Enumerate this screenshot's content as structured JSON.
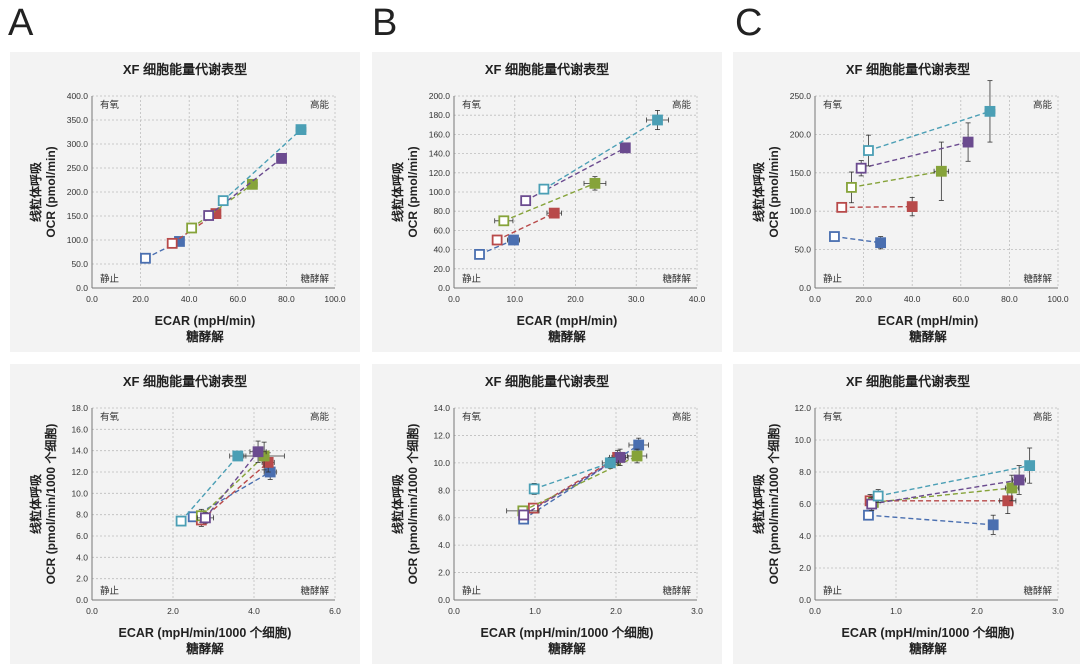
{
  "panels": [
    {
      "letter": "A"
    },
    {
      "letter": "B"
    },
    {
      "letter": "C"
    }
  ],
  "quadrants": {
    "top_left": "有氧",
    "top_right": "高能",
    "bottom_left": "静止",
    "bottom_right": "糖酵解"
  },
  "colors": {
    "gray": "#8c8c8c",
    "blue": "#4a6fb0",
    "red": "#b84a4a",
    "green": "#86a33a",
    "purple": "#6b4b8f",
    "teal": "#4b9fb5"
  },
  "chart_data": [
    {
      "id": "A-top",
      "type": "scatter",
      "title": "XF 细胞能量代谢表型",
      "ylabel": [
        "线粒体呼吸",
        "OCR (pmol/min)"
      ],
      "xlabel": [
        "ECAR (mpH/min)",
        "糖酵解"
      ],
      "xlim": [
        0,
        100
      ],
      "ylim": [
        0,
        400
      ],
      "xticks": [
        0,
        20,
        40,
        60,
        80,
        100
      ],
      "yticks": [
        0,
        50,
        100,
        150,
        200,
        250,
        300,
        350,
        400
      ],
      "xfmt": 1,
      "yfmt": 1,
      "series": [
        {
          "name": "blue",
          "color": "#4a6fb0",
          "points": [
            [
              22,
              62,
              0,
              0
            ],
            [
              36,
              97,
              0,
              0
            ]
          ]
        },
        {
          "name": "red",
          "color": "#b84a4a",
          "points": [
            [
              33,
              93,
              0,
              0
            ],
            [
              51,
              155,
              0,
              0
            ]
          ]
        },
        {
          "name": "green",
          "color": "#86a33a",
          "points": [
            [
              41,
              125,
              0,
              0
            ],
            [
              66,
              216,
              2,
              10
            ]
          ]
        },
        {
          "name": "purple",
          "color": "#6b4b8f",
          "points": [
            [
              48,
              151,
              0,
              0
            ],
            [
              78,
              270,
              1.5,
              10
            ]
          ]
        },
        {
          "name": "teal",
          "color": "#4b9fb5",
          "points": [
            [
              54,
              182,
              0,
              0
            ],
            [
              86,
              330,
              2,
              6
            ]
          ]
        }
      ]
    },
    {
      "id": "B-top",
      "type": "scatter",
      "title": "XF 细胞能量代谢表型",
      "ylabel": [
        "线粒体呼吸",
        "OCR (pmol/min)"
      ],
      "xlabel": [
        "ECAR (mpH/min)",
        "糖酵解"
      ],
      "xlim": [
        0,
        40
      ],
      "ylim": [
        0,
        200
      ],
      "xticks": [
        0,
        10,
        20,
        30,
        40
      ],
      "yticks": [
        0,
        20,
        40,
        60,
        80,
        100,
        120,
        140,
        160,
        180,
        200
      ],
      "xfmt": 1,
      "yfmt": 1,
      "series": [
        {
          "name": "blue",
          "color": "#4a6fb0",
          "points": [
            [
              4.2,
              35,
              0,
              0
            ],
            [
              9.8,
              50,
              1,
              3
            ]
          ]
        },
        {
          "name": "red",
          "color": "#b84a4a",
          "points": [
            [
              7.1,
              50,
              0,
              0
            ],
            [
              16.5,
              78,
              1.2,
              4
            ]
          ]
        },
        {
          "name": "green",
          "color": "#86a33a",
          "points": [
            [
              8.2,
              70,
              1.5,
              3
            ],
            [
              23.2,
              109,
              1.8,
              7
            ]
          ]
        },
        {
          "name": "purple",
          "color": "#6b4b8f",
          "points": [
            [
              11.8,
              91,
              0,
              0
            ],
            [
              28.2,
              146,
              0,
              4
            ]
          ]
        },
        {
          "name": "teal",
          "color": "#4b9fb5",
          "points": [
            [
              14.8,
              103,
              0,
              0
            ],
            [
              33.5,
              175,
              1.8,
              10
            ]
          ]
        }
      ]
    },
    {
      "id": "C-top",
      "type": "scatter",
      "title": "XF 细胞能量代谢表型",
      "ylabel": [
        "线粒体呼吸",
        "OCR (pmol/min)"
      ],
      "xlabel": [
        "ECAR (mpH/min)",
        "糖酵解"
      ],
      "xlim": [
        0,
        100
      ],
      "ylim": [
        0,
        250
      ],
      "xticks": [
        0,
        20,
        40,
        60,
        80,
        100
      ],
      "yticks": [
        0,
        50,
        100,
        150,
        200,
        250
      ],
      "xfmt": 1,
      "yfmt": 1,
      "series": [
        {
          "name": "blue",
          "color": "#4a6fb0",
          "points": [
            [
              8,
              67,
              0,
              0
            ],
            [
              27,
              59,
              2,
              8
            ]
          ]
        },
        {
          "name": "red",
          "color": "#b84a4a",
          "points": [
            [
              11,
              105,
              0,
              0
            ],
            [
              40,
              106,
              1,
              12
            ]
          ]
        },
        {
          "name": "green",
          "color": "#86a33a",
          "points": [
            [
              15,
              131,
              0,
              20
            ],
            [
              52,
              152,
              3,
              38
            ]
          ]
        },
        {
          "name": "purple",
          "color": "#6b4b8f",
          "points": [
            [
              19,
              156,
              0,
              10
            ],
            [
              63,
              190,
              2,
              25
            ]
          ]
        },
        {
          "name": "teal",
          "color": "#4b9fb5",
          "points": [
            [
              22,
              179,
              0,
              20
            ],
            [
              72,
              230,
              2,
              40
            ]
          ]
        }
      ]
    },
    {
      "id": "A-bottom",
      "type": "scatter",
      "title": "XF 细胞能量代谢表型",
      "ylabel": [
        "线粒体呼吸",
        "OCR (pmol/min/1000 个细胞)"
      ],
      "xlabel": [
        "ECAR (mpH/min/1000 个细胞)",
        "糖酵解"
      ],
      "xlim": [
        0,
        6
      ],
      "ylim": [
        0,
        18
      ],
      "xticks": [
        0,
        2,
        4,
        6
      ],
      "yticks": [
        0,
        2,
        4,
        6,
        8,
        10,
        12,
        14,
        16,
        18
      ],
      "xfmt": 1,
      "yfmt": 1,
      "series": [
        {
          "name": "blue",
          "color": "#4a6fb0",
          "points": [
            [
              2.5,
              7.8,
              0,
              0
            ],
            [
              4.4,
              12.0,
              0.15,
              0.7
            ]
          ]
        },
        {
          "name": "red",
          "color": "#b84a4a",
          "points": [
            [
              2.7,
              7.5,
              0.1,
              0.6
            ],
            [
              4.35,
              12.9,
              0.15,
              0.9
            ]
          ]
        },
        {
          "name": "green",
          "color": "#86a33a",
          "points": [
            [
              2.7,
              7.9,
              0.1,
              0.6
            ],
            [
              4.25,
              13.5,
              0.5,
              1.3
            ]
          ]
        },
        {
          "name": "purple",
          "color": "#6b4b8f",
          "points": [
            [
              2.8,
              7.7,
              0.2,
              0.5
            ],
            [
              4.1,
              13.9,
              0.2,
              1.0
            ]
          ]
        },
        {
          "name": "teal",
          "color": "#4b9fb5",
          "points": [
            [
              2.2,
              7.4,
              0,
              0
            ],
            [
              3.6,
              13.5,
              0.2,
              0.4
            ]
          ]
        }
      ]
    },
    {
      "id": "B-bottom",
      "type": "scatter",
      "title": "XF 细胞能量代谢表型",
      "ylabel": [
        "线粒体呼吸",
        "OCR (pmol/min/1000 个细胞)"
      ],
      "xlabel": [
        "ECAR (mpH/min/1000 个细胞)",
        "糖酵解"
      ],
      "xlim": [
        0,
        3
      ],
      "ylim": [
        0,
        14
      ],
      "xticks": [
        0,
        1,
        2,
        3
      ],
      "yticks": [
        0,
        2,
        4,
        6,
        8,
        10,
        12,
        14
      ],
      "xfmt": 1,
      "yfmt": 1,
      "series": [
        {
          "name": "blue",
          "color": "#4a6fb0",
          "points": [
            [
              0.86,
              5.9,
              0.05,
              0.3
            ],
            [
              2.28,
              11.3,
              0.12,
              0.5
            ]
          ]
        },
        {
          "name": "red",
          "color": "#b84a4a",
          "points": [
            [
              0.98,
              6.7,
              0.05,
              0.3
            ],
            [
              2.02,
              10.4,
              0.1,
              0.5
            ]
          ]
        },
        {
          "name": "green",
          "color": "#86a33a",
          "points": [
            [
              0.85,
              6.5,
              0.2,
              0.3
            ],
            [
              2.26,
              10.5,
              0.12,
              0.5
            ]
          ]
        },
        {
          "name": "purple",
          "color": "#6b4b8f",
          "points": [
            [
              0.86,
              6.2,
              0.05,
              0.3
            ],
            [
              2.05,
              10.4,
              0.1,
              0.6
            ]
          ]
        },
        {
          "name": "teal",
          "color": "#4b9fb5",
          "points": [
            [
              0.99,
              8.1,
              0.05,
              0.4
            ],
            [
              1.93,
              10.0,
              0.1,
              0.4
            ]
          ]
        }
      ]
    },
    {
      "id": "C-bottom",
      "type": "scatter",
      "title": "XF 细胞能量代谢表型",
      "ylabel": [
        "线粒体呼吸",
        "OCR (pmol/min/1000 个细胞)"
      ],
      "xlabel": [
        "ECAR (mpH/min/1000 个细胞)",
        "糖酵解"
      ],
      "xlim": [
        0,
        3
      ],
      "ylim": [
        0,
        12
      ],
      "xticks": [
        0,
        1,
        2,
        3
      ],
      "yticks": [
        0,
        2,
        4,
        6,
        8,
        10,
        12
      ],
      "xfmt": 1,
      "yfmt": 1,
      "series": [
        {
          "name": "blue",
          "color": "#4a6fb0",
          "points": [
            [
              0.66,
              5.3,
              0,
              0
            ],
            [
              2.2,
              4.7,
              0.05,
              0.6
            ]
          ]
        },
        {
          "name": "red",
          "color": "#b84a4a",
          "points": [
            [
              0.68,
              6.2,
              0.03,
              0.4
            ],
            [
              2.38,
              6.2,
              0.1,
              0.8
            ]
          ]
        },
        {
          "name": "green",
          "color": "#86a33a",
          "points": [
            [
              0.72,
              6.1,
              0.03,
              0.4
            ],
            [
              2.43,
              7.0,
              0.08,
              0.8
            ]
          ]
        },
        {
          "name": "purple",
          "color": "#6b4b8f",
          "points": [
            [
              0.7,
              6.0,
              0.03,
              0.4
            ],
            [
              2.52,
              7.5,
              0.08,
              0.9
            ]
          ]
        },
        {
          "name": "teal",
          "color": "#4b9fb5",
          "points": [
            [
              0.78,
              6.5,
              0.05,
              0.4
            ],
            [
              2.65,
              8.4,
              0.05,
              1.1
            ]
          ]
        }
      ]
    }
  ]
}
